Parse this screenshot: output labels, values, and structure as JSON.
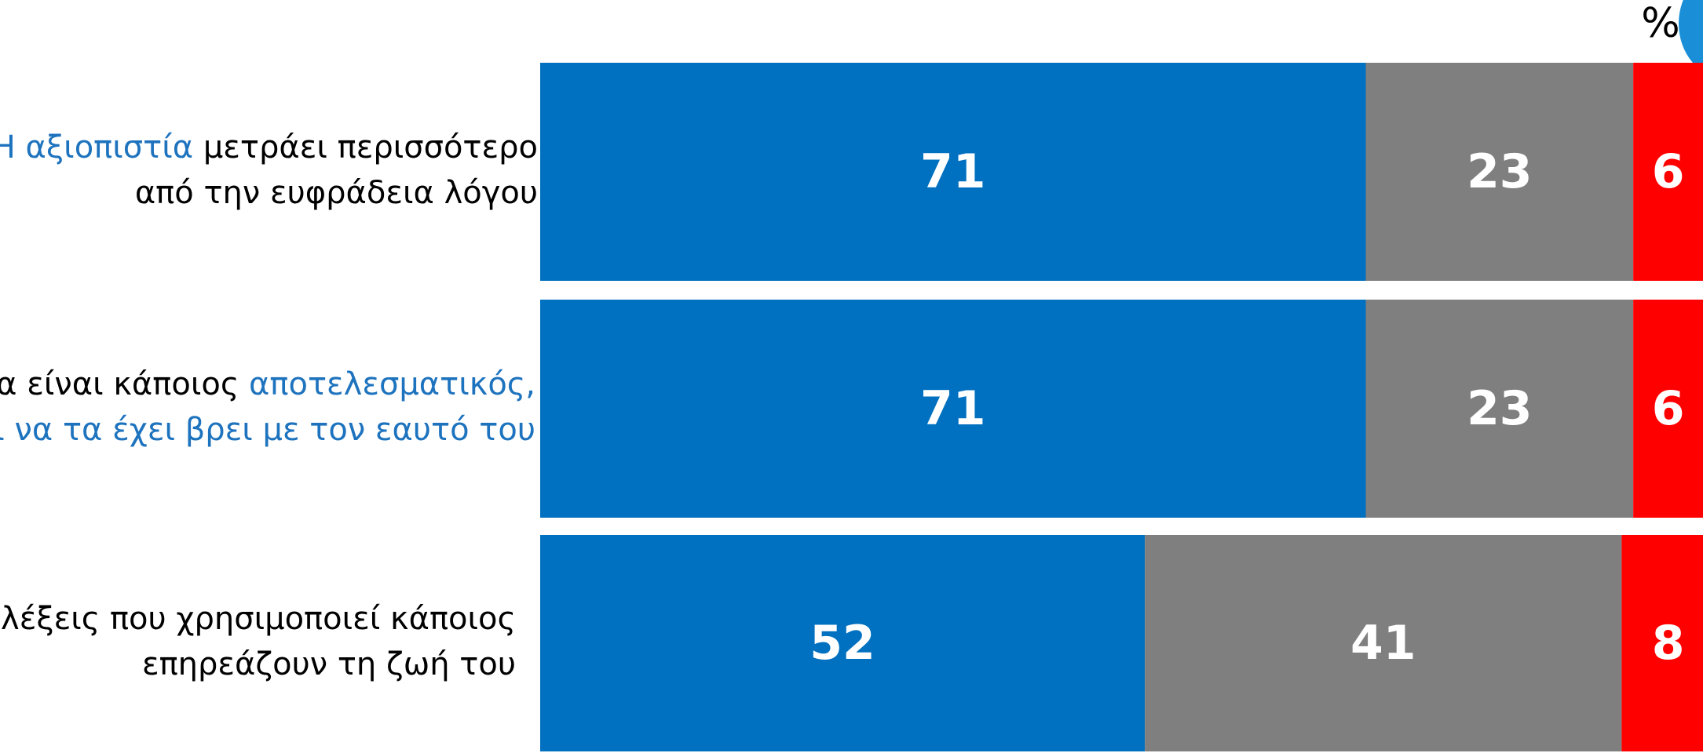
{
  "unit_symbol": "%",
  "colors": {
    "positive": "#0070c0",
    "neutral": "#7f7f7f",
    "negative": "#ff0000",
    "highlight_text": "#1e73be",
    "decoration": "#1a8fd8"
  },
  "rows": [
    {
      "line1": [
        {
          "text": "Η αξιοπιστία",
          "hl": true
        },
        {
          "text": " μετράει περισσότερο",
          "hl": false
        }
      ],
      "line2": [
        {
          "text": "από την ευφράδεια λόγου",
          "hl": false
        }
      ]
    },
    {
      "line1": [
        {
          "text": "να είναι κάποιος ",
          "hl": false
        },
        {
          "text": "αποτελεσματικός,",
          "hl": true
        }
      ],
      "line2": [
        {
          "text": "ει να τα έχει βρει με τον εαυτό του",
          "hl": true
        }
      ]
    },
    {
      "line1": [
        {
          "text": "ι λέξεις που χρησιμοποιεί κάποιος",
          "hl": false
        }
      ],
      "line2": [
        {
          "text": "επηρεάζουν τη ζωή του",
          "hl": false
        }
      ]
    }
  ],
  "chart_data": {
    "type": "bar",
    "orientation": "horizontal",
    "stacked": true,
    "percent_total": 100,
    "series": [
      {
        "values": [
          71,
          71,
          52
        ],
        "color": "#0070c0"
      },
      {
        "values": [
          23,
          23,
          41
        ],
        "color": "#7f7f7f"
      },
      {
        "values": [
          6,
          6,
          8
        ],
        "color": "#ff0000"
      }
    ]
  }
}
